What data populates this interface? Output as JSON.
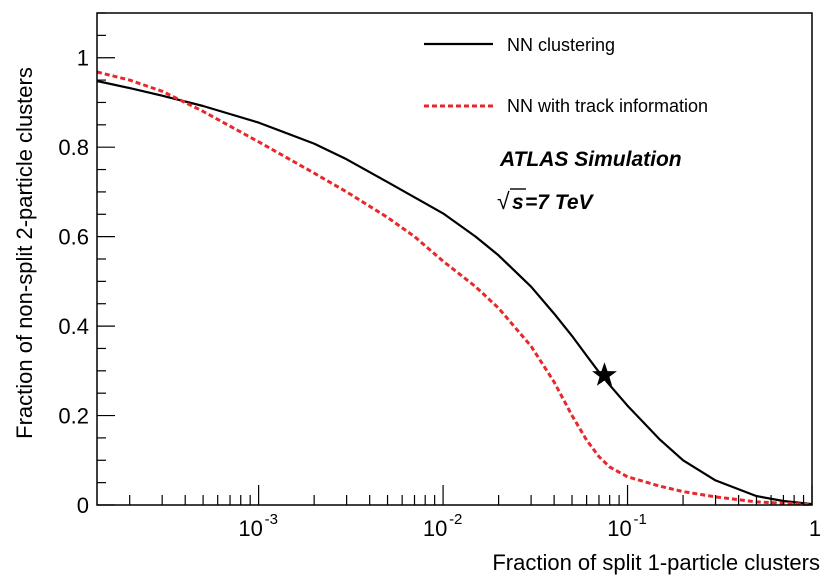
{
  "chart_data": {
    "type": "line",
    "xlabel": "Fraction of split 1-particle clusters",
    "ylabel": "Fraction of non-split 2-particle clusters",
    "xscale": "log",
    "xlim": [
      0.000133,
      1
    ],
    "ylim": [
      0,
      1.1
    ],
    "grid": false,
    "legend_position": "top-right",
    "x_ticks": [
      {
        "value": 0.001,
        "base": "10",
        "exp": "-3"
      },
      {
        "value": 0.01,
        "base": "10",
        "exp": "-2"
      },
      {
        "value": 0.1,
        "base": "10",
        "exp": "-1"
      },
      {
        "value": 1,
        "base": "1",
        "exp": ""
      }
    ],
    "y_ticks": [
      {
        "value": 0,
        "label": "0"
      },
      {
        "value": 0.2,
        "label": "0.2"
      },
      {
        "value": 0.4,
        "label": "0.4"
      },
      {
        "value": 0.6,
        "label": "0.6"
      },
      {
        "value": 0.8,
        "label": "0.8"
      },
      {
        "value": 1,
        "label": "1"
      }
    ],
    "series": [
      {
        "name": "NN clustering",
        "color": "#000000",
        "style": "solid",
        "points": [
          [
            0.000133,
            0.948
          ],
          [
            0.0002,
            0.932
          ],
          [
            0.0003,
            0.915
          ],
          [
            0.0005,
            0.892
          ],
          [
            0.001,
            0.855
          ],
          [
            0.002,
            0.808
          ],
          [
            0.003,
            0.773
          ],
          [
            0.005,
            0.722
          ],
          [
            0.01,
            0.652
          ],
          [
            0.015,
            0.6
          ],
          [
            0.02,
            0.558
          ],
          [
            0.03,
            0.488
          ],
          [
            0.04,
            0.428
          ],
          [
            0.05,
            0.378
          ],
          [
            0.06,
            0.334
          ],
          [
            0.07,
            0.297
          ],
          [
            0.08,
            0.268
          ],
          [
            0.1,
            0.222
          ],
          [
            0.15,
            0.146
          ],
          [
            0.2,
            0.1
          ],
          [
            0.3,
            0.055
          ],
          [
            0.5,
            0.02
          ],
          [
            0.7,
            0.009
          ],
          [
            1.0,
            0.002
          ]
        ]
      },
      {
        "name": "NN with track information",
        "color": "#e8282b",
        "style": "dashed",
        "points": [
          [
            0.000133,
            0.968
          ],
          [
            0.0002,
            0.95
          ],
          [
            0.0003,
            0.925
          ],
          [
            0.0004,
            0.9
          ],
          [
            0.0005,
            0.88
          ],
          [
            0.001,
            0.812
          ],
          [
            0.002,
            0.742
          ],
          [
            0.003,
            0.7
          ],
          [
            0.005,
            0.643
          ],
          [
            0.007,
            0.6
          ],
          [
            0.01,
            0.545
          ],
          [
            0.015,
            0.488
          ],
          [
            0.02,
            0.44
          ],
          [
            0.03,
            0.355
          ],
          [
            0.04,
            0.275
          ],
          [
            0.05,
            0.2
          ],
          [
            0.06,
            0.145
          ],
          [
            0.07,
            0.108
          ],
          [
            0.08,
            0.085
          ],
          [
            0.1,
            0.063
          ],
          [
            0.15,
            0.042
          ],
          [
            0.2,
            0.03
          ],
          [
            0.3,
            0.018
          ],
          [
            0.5,
            0.007
          ],
          [
            1.0,
            0.001
          ]
        ]
      }
    ],
    "marker": {
      "shape": "star",
      "x": 0.075,
      "y": 0.29
    },
    "annotations": {
      "atlas": "ATLAS Simulation",
      "energy_root": "√",
      "energy_s": "s",
      "energy_value": "=7 TeV"
    }
  }
}
